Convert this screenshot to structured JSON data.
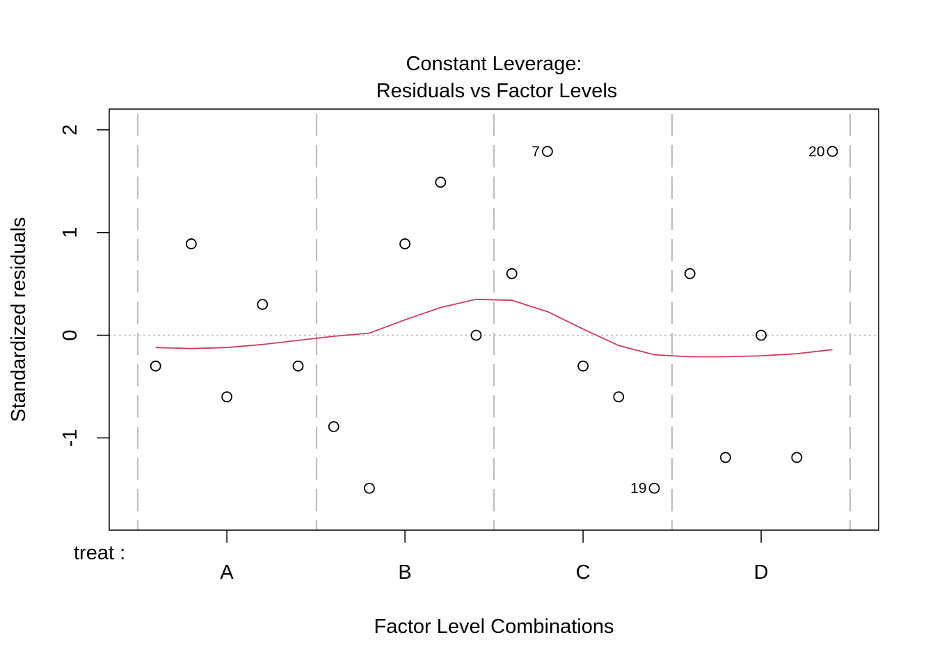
{
  "chart_data": {
    "type": "scatter",
    "title_line1": "Constant Leverage:",
    "title_line2": "Residuals vs Factor Levels",
    "xlabel": "Factor Level Combinations",
    "ylabel": "Standardized residuals",
    "factor_label": "treat :",
    "levels": [
      "A",
      "B",
      "C",
      "D"
    ],
    "yticks": [
      -1,
      0,
      1,
      2
    ],
    "ylim": [
      -1.9,
      2.2
    ],
    "xlim": [
      0.5,
      21.5
    ],
    "grid": false,
    "points": [
      {
        "x": 1,
        "y": -0.3
      },
      {
        "x": 2,
        "y": 0.89
      },
      {
        "x": 3,
        "y": -0.6
      },
      {
        "x": 4,
        "y": 0.3
      },
      {
        "x": 5,
        "y": -0.3
      },
      {
        "x": 6,
        "y": -0.89
      },
      {
        "x": 7,
        "y": -1.49
      },
      {
        "x": 8,
        "y": 0.89
      },
      {
        "x": 9,
        "y": 1.49
      },
      {
        "x": 10,
        "y": 0.0
      },
      {
        "x": 11,
        "y": 0.6
      },
      {
        "x": 12,
        "y": 1.79,
        "label": "7"
      },
      {
        "x": 13,
        "y": -0.3
      },
      {
        "x": 14,
        "y": -0.6
      },
      {
        "x": 15,
        "y": -1.49,
        "label": "19"
      },
      {
        "x": 16,
        "y": 0.6
      },
      {
        "x": 17,
        "y": -1.19
      },
      {
        "x": 18,
        "y": 0.0
      },
      {
        "x": 19,
        "y": -1.19
      },
      {
        "x": 20,
        "y": 1.79,
        "label": "20"
      }
    ],
    "smooth_line": {
      "color": "#D1395F",
      "x": [
        1,
        2,
        3,
        4,
        5,
        6,
        7,
        8,
        9,
        10,
        11,
        12,
        13,
        14,
        15,
        16,
        17,
        18,
        19,
        20
      ],
      "y": [
        -0.12,
        -0.13,
        -0.12,
        -0.09,
        -0.05,
        -0.01,
        0.02,
        0.15,
        0.27,
        0.35,
        0.34,
        0.23,
        0.06,
        -0.1,
        -0.19,
        -0.21,
        -0.21,
        -0.2,
        -0.18,
        -0.14
      ]
    },
    "zero_line": {
      "y": 0,
      "color": "#BEBEBE"
    },
    "level_separators": {
      "x": [
        0.8,
        5.5,
        10.5,
        15.5,
        20.5
      ],
      "color": "#BEBEBE"
    },
    "level_positions": [
      3,
      8,
      13,
      18
    ]
  }
}
